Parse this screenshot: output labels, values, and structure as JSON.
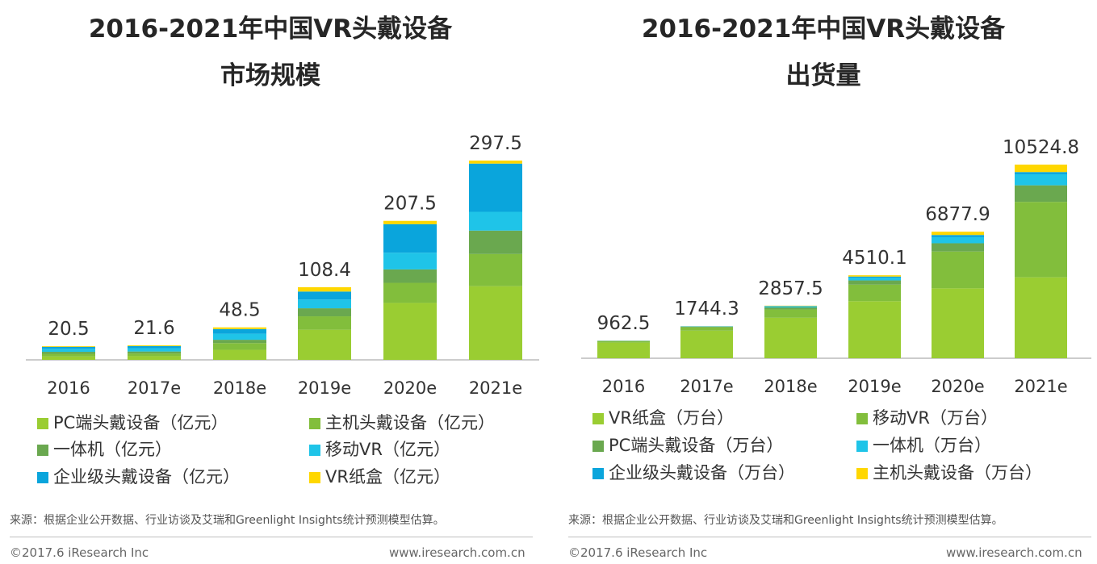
{
  "chart_data": [
    {
      "type": "bar",
      "stacked": true,
      "title": "2016-2021年中国VR头戴设备市场规模",
      "title_lines": [
        "2016-2021年中国VR头戴设备",
        "市场规模"
      ],
      "categories": [
        "2016",
        "2017e",
        "2018e",
        "2019e",
        "2020e",
        "2021e"
      ],
      "totals": [
        "20.5",
        "21.6",
        "48.5",
        "108.4",
        "207.5",
        "297.5"
      ],
      "total_values": [
        20.5,
        21.6,
        48.5,
        108.4,
        207.5,
        297.5
      ],
      "ylim": [
        0,
        310
      ],
      "series": [
        {
          "name": "PC端头戴设备（亿元）",
          "color": "#9ACD32",
          "values": [
            5.0,
            5.5,
            15.0,
            45.0,
            85.0,
            110.0
          ]
        },
        {
          "name": "主机头戴设备（亿元）",
          "color": "#82BE3C",
          "values": [
            4.0,
            4.0,
            10.0,
            20.0,
            30.0,
            48.0
          ]
        },
        {
          "name": "一体机（亿元）",
          "color": "#6AA84F",
          "values": [
            3.0,
            3.0,
            5.0,
            12.0,
            20.0,
            35.0
          ]
        },
        {
          "name": "移动VR（亿元）",
          "color": "#1FC4E8",
          "values": [
            4.5,
            5.0,
            9.0,
            13.0,
            25.0,
            28.0
          ]
        },
        {
          "name": "企业级头戴设备（亿元）",
          "color": "#0AA5DC",
          "values": [
            3.0,
            3.0,
            7.0,
            12.0,
            42.5,
            72.0
          ]
        },
        {
          "name": "VR纸盒（亿元）",
          "color": "#FFD700",
          "values": [
            1.0,
            1.1,
            2.5,
            6.4,
            5.0,
            4.5
          ]
        }
      ],
      "source": "来源：根据企业公开数据、行业访谈及艾瑞和Greenlight Insights统计预测模型估算。",
      "copyright": "©2017.6 iResearch Inc",
      "website": "www.iresearch.com.cn"
    },
    {
      "type": "bar",
      "stacked": true,
      "title": "2016-2021年中国VR头戴设备出货量",
      "title_lines": [
        "2016-2021年中国VR头戴设备",
        "出货量"
      ],
      "categories": [
        "2016",
        "2017e",
        "2018e",
        "2019e",
        "2020e",
        "2021e"
      ],
      "totals": [
        "962.5",
        "1744.3",
        "2857.5",
        "4510.1",
        "6877.9",
        "10524.8"
      ],
      "total_values": [
        962.5,
        1744.3,
        2857.5,
        4510.1,
        6877.9,
        10524.8
      ],
      "ylim": [
        0,
        11000
      ],
      "series": [
        {
          "name": "VR纸盒（万台）",
          "color": "#9ACD32",
          "values": [
            850.0,
            1500.0,
            2200.0,
            3100.0,
            3800.0,
            4400.0
          ]
        },
        {
          "name": "移动VR（万台）",
          "color": "#82BE3C",
          "values": [
            80.0,
            180.0,
            450.0,
            900.0,
            2000.0,
            4100.0
          ]
        },
        {
          "name": "PC端头戴设备（万台）",
          "color": "#6AA84F",
          "values": [
            20.0,
            40.0,
            110.0,
            230.0,
            450.0,
            900.0
          ]
        },
        {
          "name": "一体机（万台）",
          "color": "#1FC4E8",
          "values": [
            7.0,
            14.0,
            50.0,
            140.0,
            330.0,
            600.0
          ]
        },
        {
          "name": "企业级头戴设备（万台）",
          "color": "#0AA5DC",
          "values": [
            3.0,
            6.0,
            25.0,
            70.0,
            120.0,
            120.0
          ]
        },
        {
          "name": "主机头戴设备（万台）",
          "color": "#FFD700",
          "values": [
            2.5,
            4.3,
            22.5,
            70.1,
            177.9,
            404.8
          ]
        }
      ],
      "source": "来源：根据企业公开数据、行业访谈及艾瑞和Greenlight Insights统计预测模型估算。",
      "copyright": "©2017.6 iResearch Inc",
      "website": "www.iresearch.com.cn"
    }
  ]
}
